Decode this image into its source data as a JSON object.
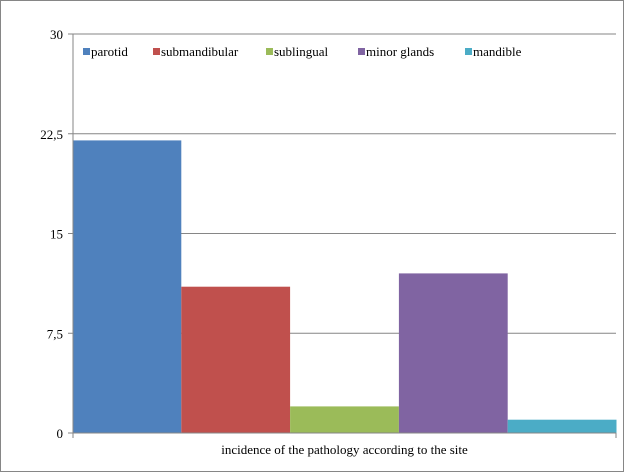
{
  "chart_data": {
    "type": "bar",
    "categories": [
      "incidence of the pathology according to the site"
    ],
    "series": [
      {
        "name": "parotid",
        "values": [
          22
        ],
        "color": "#4F81BD"
      },
      {
        "name": "submandibular",
        "values": [
          11
        ],
        "color": "#C0504D"
      },
      {
        "name": "sublingual",
        "values": [
          2
        ],
        "color": "#9BBB59"
      },
      {
        "name": "minor glands",
        "values": [
          12
        ],
        "color": "#8064A2"
      },
      {
        "name": "mandible",
        "values": [
          1
        ],
        "color": "#4BACC6"
      }
    ],
    "title": "",
    "xlabel": "",
    "ylabel": "",
    "ylim": [
      0,
      30
    ],
    "yticks": [
      "0",
      "7,5",
      "15",
      "22,5",
      "30"
    ],
    "ytick_values": [
      0,
      7.5,
      15,
      22.5,
      30
    ],
    "grid": true,
    "legend_position": "top"
  }
}
